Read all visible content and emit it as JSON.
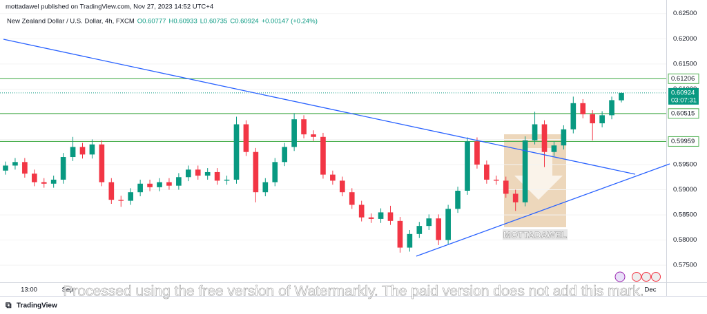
{
  "chart_data": {
    "type": "candlestick",
    "header": "mottadawel published on TradingView.com, Nov 27, 2023 14:52 UTC+4",
    "title": "New Zealand Dollar / U.S. Dollar, 4h, FXCM",
    "legend_values": [
      "O0.60777",
      "H0.60933",
      "L0.60735",
      "C0.60924",
      "+0.00147 (+0.24%)"
    ],
    "up_color": "#089981",
    "down_color": "#f23645",
    "open": [
      0.5938,
      0.5948,
      0.5955,
      0.5932,
      0.5915,
      0.5912,
      0.592,
      0.5965,
      0.5985,
      0.597,
      0.599,
      0.5915,
      0.588,
      0.5878,
      0.5895,
      0.5912,
      0.5905,
      0.5915,
      0.5908,
      0.5925,
      0.594,
      0.5928,
      0.5935,
      0.5918,
      0.592,
      0.603,
      0.5975,
      0.5895,
      0.5915,
      0.5955,
      0.5985,
      0.604,
      0.601,
      0.6005,
      0.593,
      0.5918,
      0.5895,
      0.587,
      0.5845,
      0.5842,
      0.5855,
      0.5838,
      0.5785,
      0.5812,
      0.5828,
      0.5843,
      0.58,
      0.5862,
      0.5898,
      0.5996,
      0.595,
      0.592,
      0.5918,
      0.5892,
      0.5875,
      0.5998,
      0.603,
      0.5975,
      0.5988,
      0.602,
      0.6072,
      0.605,
      0.6032,
      0.6048,
      0.60777
    ],
    "high": [
      0.5956,
      0.5963,
      0.5963,
      0.594,
      0.5923,
      0.5928,
      0.5973,
      0.6005,
      0.5993,
      0.6,
      0.5998,
      0.5923,
      0.5888,
      0.5903,
      0.592,
      0.592,
      0.5923,
      0.5923,
      0.5933,
      0.5948,
      0.5948,
      0.5943,
      0.5943,
      0.5928,
      0.6045,
      0.6038,
      0.5983,
      0.5923,
      0.5963,
      0.5993,
      0.6052,
      0.6048,
      0.6018,
      0.6013,
      0.5938,
      0.5926,
      0.5903,
      0.5878,
      0.5853,
      0.5863,
      0.5868,
      0.5846,
      0.582,
      0.5836,
      0.5851,
      0.5851,
      0.587,
      0.5906,
      0.6004,
      0.6004,
      0.5958,
      0.5928,
      0.5926,
      0.59,
      0.6006,
      0.6055,
      0.6038,
      0.5996,
      0.6028,
      0.6085,
      0.608,
      0.6058,
      0.6056,
      0.6085,
      0.60933
    ],
    "low": [
      0.593,
      0.594,
      0.5924,
      0.5907,
      0.5904,
      0.5904,
      0.5912,
      0.5957,
      0.5962,
      0.5962,
      0.5907,
      0.5872,
      0.5866,
      0.587,
      0.5887,
      0.5897,
      0.5897,
      0.59,
      0.59,
      0.5917,
      0.592,
      0.592,
      0.591,
      0.591,
      0.5912,
      0.5967,
      0.5875,
      0.5887,
      0.5907,
      0.5947,
      0.5977,
      0.6002,
      0.5997,
      0.5922,
      0.591,
      0.5887,
      0.5862,
      0.5837,
      0.5834,
      0.5834,
      0.583,
      0.5775,
      0.5777,
      0.5804,
      0.582,
      0.579,
      0.5792,
      0.5854,
      0.589,
      0.5942,
      0.5912,
      0.591,
      0.5884,
      0.5858,
      0.5867,
      0.599,
      0.5945,
      0.5967,
      0.598,
      0.6012,
      0.6042,
      0.5998,
      0.6024,
      0.604,
      0.60735
    ],
    "close": [
      0.5948,
      0.5955,
      0.5932,
      0.5915,
      0.5912,
      0.592,
      0.5965,
      0.5985,
      0.597,
      0.599,
      0.5915,
      0.588,
      0.5878,
      0.5895,
      0.5912,
      0.5905,
      0.5915,
      0.5908,
      0.5925,
      0.594,
      0.5928,
      0.5935,
      0.5918,
      0.592,
      0.603,
      0.5975,
      0.5895,
      0.5915,
      0.5955,
      0.5985,
      0.604,
      0.601,
      0.6005,
      0.593,
      0.5918,
      0.5895,
      0.587,
      0.5845,
      0.5842,
      0.5855,
      0.5838,
      0.5785,
      0.5812,
      0.5828,
      0.5843,
      0.58,
      0.5862,
      0.5898,
      0.5996,
      0.595,
      0.592,
      0.5918,
      0.5892,
      0.5875,
      0.5998,
      0.603,
      0.5975,
      0.5988,
      0.602,
      0.6072,
      0.605,
      0.6032,
      0.6048,
      0.6078,
      0.60924
    ],
    "ylim": [
      0.5716,
      0.6277
    ],
    "yticks": [
      {
        "value": 0.575,
        "label": "0.57500"
      },
      {
        "value": 0.58,
        "label": "0.58000"
      },
      {
        "value": 0.585,
        "label": "0.58500"
      },
      {
        "value": 0.59,
        "label": "0.59000"
      },
      {
        "value": 0.595,
        "label": "0.59500"
      },
      {
        "value": 0.6,
        "label": "0.60000"
      },
      {
        "value": 0.605,
        "label": "0.60500"
      },
      {
        "value": 0.61,
        "label": "0.61000"
      },
      {
        "value": 0.615,
        "label": "0.61500"
      },
      {
        "value": 0.62,
        "label": "0.62000"
      },
      {
        "value": 0.625,
        "label": "0.62500"
      }
    ],
    "levels": [
      0.61206,
      0.60515,
      0.59959
    ],
    "level_color": "#4caf50",
    "last_price": 0.60924,
    "countdown": "03:07:31",
    "xticks": [
      "13:00",
      "Sep",
      "Dec"
    ],
    "logo_text": "MOTTADAWEL",
    "watermark": "Processed using the free version of Watermarkly. The paid version does not add this mark.",
    "brand": "TradingView"
  }
}
